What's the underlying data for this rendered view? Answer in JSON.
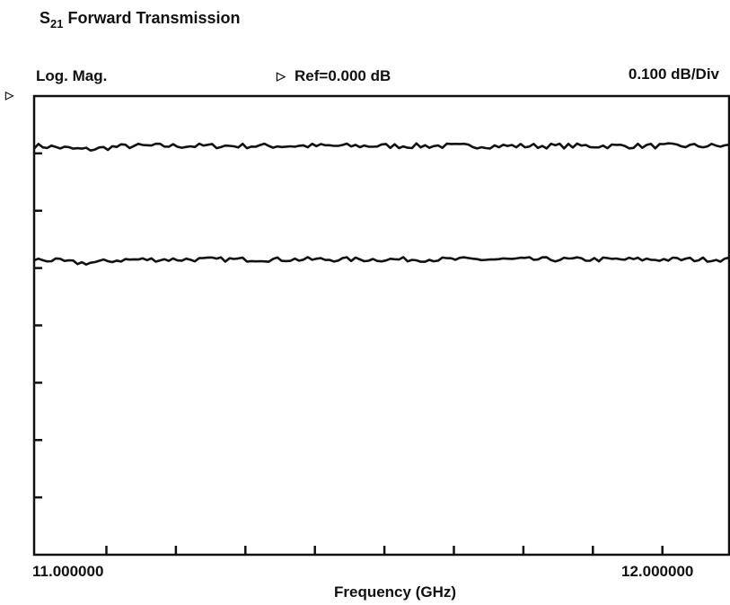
{
  "header": {
    "title_main": "S",
    "title_sub": "21",
    "title_rest": "Forward Transmission",
    "format": "Log. Mag.",
    "ref_marker_glyph": "▷",
    "ref_text": "Ref=0.000 dB",
    "scale": "0.100 dB/Div"
  },
  "chart_data": {
    "type": "line",
    "title": "S21 Forward Transmission",
    "format": "Log. Mag.",
    "reference": "Ref=0.000 dB",
    "scale_per_div": "0.100 dB/Div",
    "xlabel": "Frequency (GHz)",
    "xlim": [
      10.87,
      12.12
    ],
    "ylim": [
      -0.8,
      0.0
    ],
    "x_tick_labels": [
      {
        "value": 11.0,
        "label": "11.000000"
      },
      {
        "value": 12.0,
        "label": "12.000000"
      }
    ],
    "x_minor_ticks": [
      11.0,
      11.125,
      11.25,
      11.375,
      11.5,
      11.625,
      11.75,
      11.875,
      12.0
    ],
    "y_ticks": [
      -0.1,
      -0.2,
      -0.3,
      -0.4,
      -0.5,
      -0.6,
      -0.7
    ],
    "grid": false,
    "series": [
      {
        "level": -0.087,
        "noise": 0.0045,
        "color": "#111111"
      },
      {
        "level": -0.285,
        "noise": 0.004,
        "color": "#111111"
      }
    ]
  }
}
